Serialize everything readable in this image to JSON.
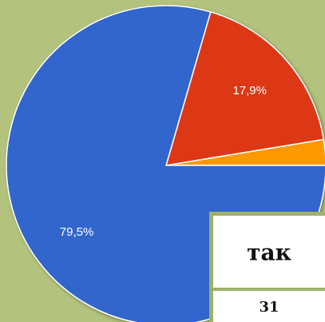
{
  "chart_data": {
    "type": "pie",
    "values": [
      2.6,
      17.9,
      79.5
    ],
    "value_labels": [
      null,
      "17,9%",
      "79,5%"
    ],
    "colors": [
      "#ff9900",
      "#dc3912",
      "#3366cc"
    ]
  },
  "table": {
    "header": "так",
    "value": 31
  }
}
